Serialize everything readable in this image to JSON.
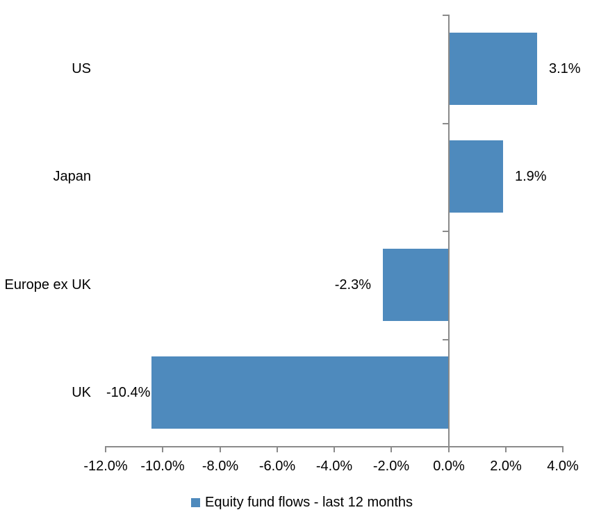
{
  "chart_data": {
    "type": "bar",
    "orientation": "horizontal",
    "title": "",
    "categories": [
      "US",
      "Japan",
      "Europe ex UK",
      "UK"
    ],
    "values": [
      3.1,
      1.9,
      -2.3,
      -10.4
    ],
    "data_labels": [
      "3.1%",
      "1.9%",
      "-2.3%",
      "-10.4%"
    ],
    "series_name": "Equity fund flows - last 12 months",
    "x_ticks": [
      -12,
      -10,
      -8,
      -6,
      -4,
      -2,
      0,
      2,
      4
    ],
    "x_tick_labels": [
      "-12.0%",
      "-10.0%",
      "-8.0%",
      "-6.0%",
      "-4.0%",
      "-2.0%",
      "0.0%",
      "2.0%",
      "4.0%"
    ],
    "xlim": [
      -12,
      4
    ],
    "grid": false,
    "legend_position": "bottom",
    "colors": {
      "bar": "#4E8ABD",
      "axis": "#8A8A8A",
      "text": "#000000",
      "background": "#FFFFFF"
    }
  }
}
